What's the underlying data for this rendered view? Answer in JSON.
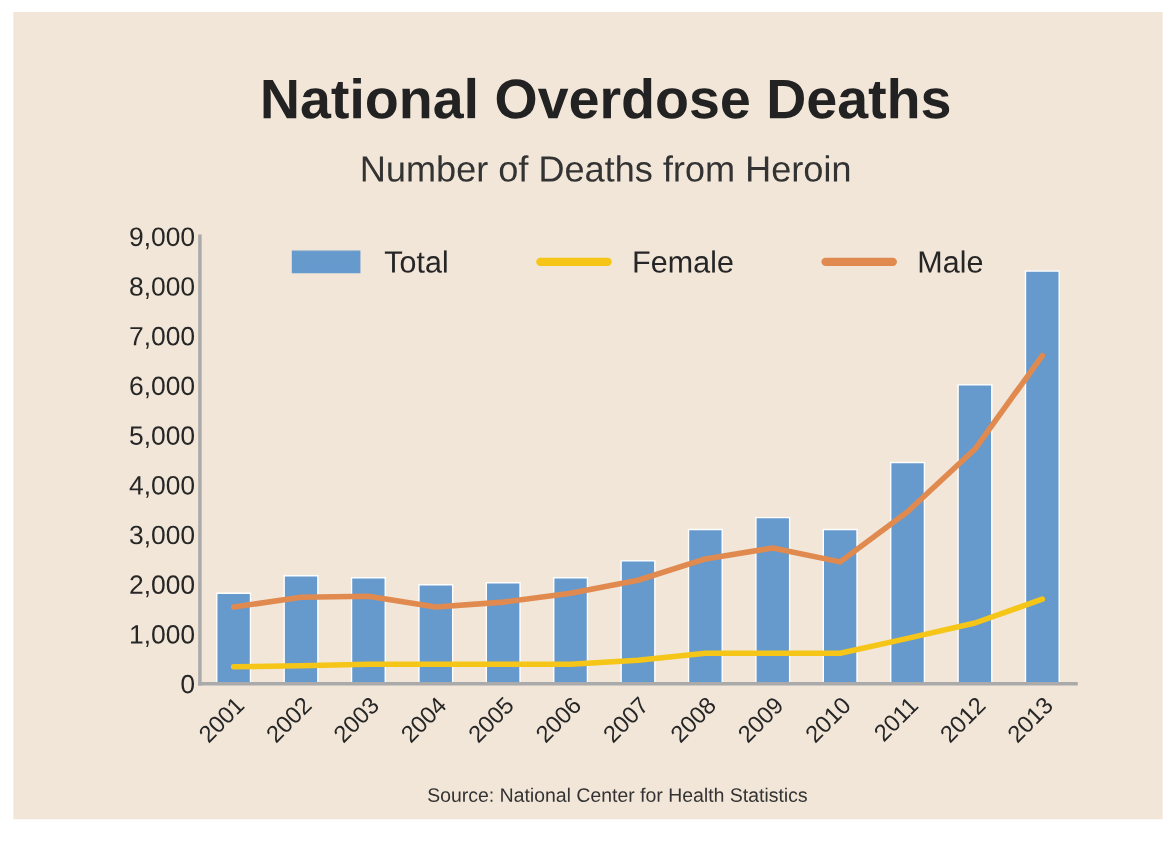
{
  "chart_data": {
    "type": "bar",
    "title": "National Overdose Deaths",
    "subtitle": "Number of Deaths from Heroin",
    "categories": [
      "2001",
      "2002",
      "2003",
      "2004",
      "2005",
      "2006",
      "2007",
      "2008",
      "2009",
      "2010",
      "2011",
      "2012",
      "2013"
    ],
    "series": [
      {
        "name": "Total",
        "color": "#6699cc",
        "values": [
          1820,
          2170,
          2130,
          1990,
          2030,
          2130,
          2470,
          3100,
          3340,
          3100,
          4450,
          6010,
          8300
        ]
      },
      {
        "name": "Female",
        "type": "line",
        "color": "#f5c518",
        "values": [
          340,
          360,
          390,
          390,
          390,
          390,
          470,
          610,
          610,
          610,
          910,
          1220,
          1700
        ]
      },
      {
        "name": "Male",
        "type": "line",
        "color": "#e08a50",
        "values": [
          1540,
          1740,
          1760,
          1540,
          1640,
          1820,
          2080,
          2510,
          2730,
          2450,
          3460,
          4720,
          6600
        ]
      }
    ],
    "ylim": [
      0,
      9000
    ],
    "yticks": [
      {
        "value": 0,
        "label": "0"
      },
      {
        "value": 1000,
        "label": "1,000"
      },
      {
        "value": 2000,
        "label": "2,000"
      },
      {
        "value": 3000,
        "label": "3,000"
      },
      {
        "value": 4000,
        "label": "4,000"
      },
      {
        "value": 5000,
        "label": "5,000"
      },
      {
        "value": 6000,
        "label": "6,000"
      },
      {
        "value": 7000,
        "label": "7,000"
      },
      {
        "value": 8000,
        "label": "8,000"
      },
      {
        "value": 9000,
        "label": "9,000"
      }
    ],
    "grid": false,
    "legend": "top",
    "annotations": [
      "Source: National Center for Health Statistics"
    ]
  }
}
